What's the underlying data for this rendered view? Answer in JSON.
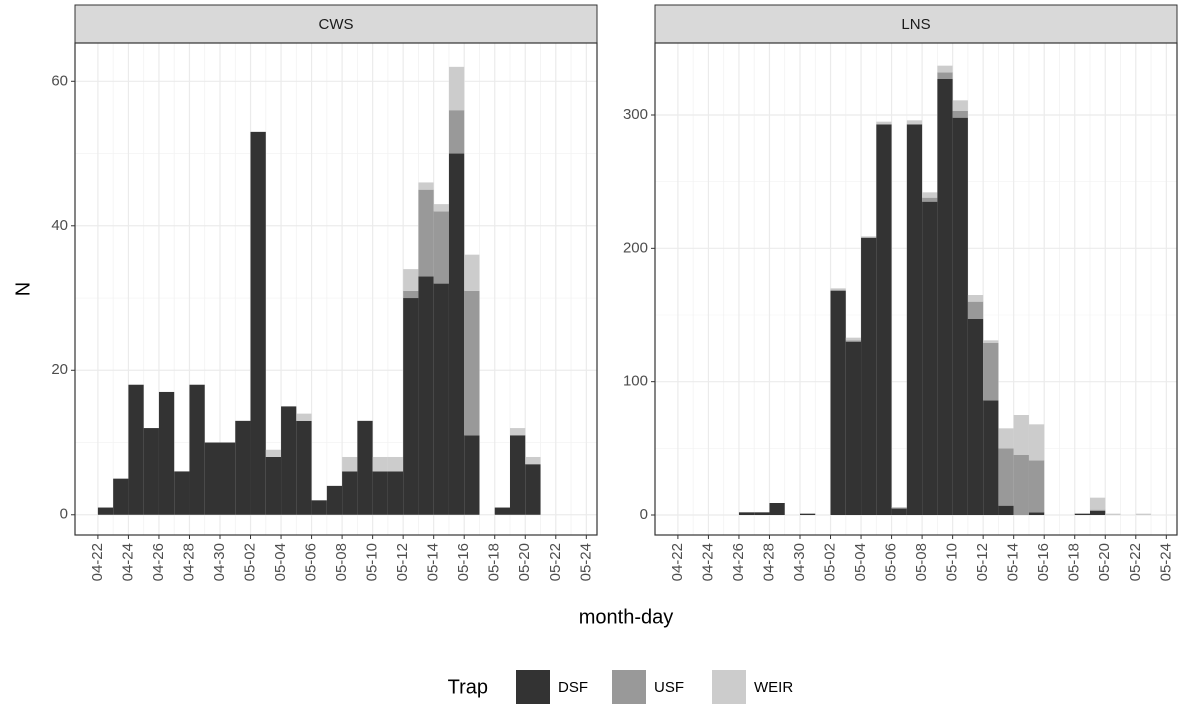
{
  "ylabel": "N",
  "xlabel": "month-day",
  "legend": {
    "title": "Trap",
    "position": "bottom",
    "series": [
      {
        "name": "DSF",
        "color": "#333333"
      },
      {
        "name": "USF",
        "color": "#999999"
      },
      {
        "name": "WEIR",
        "color": "#cccccc"
      }
    ]
  },
  "chart_data": [
    {
      "type": "bar",
      "title": "CWS",
      "stacked": true,
      "grid": true,
      "categories": [
        "04-22",
        null,
        "04-24",
        null,
        "04-26",
        null,
        "04-28",
        null,
        "04-30",
        null,
        "05-02",
        null,
        "05-04",
        null,
        "05-06",
        null,
        "05-08",
        null,
        "05-10",
        null,
        "05-12",
        null,
        "05-14",
        null,
        "05-16",
        null,
        "05-18",
        null,
        "05-20",
        null,
        "05-22",
        null,
        "05-24"
      ],
      "series": [
        {
          "values": [
            1,
            5,
            18,
            12,
            17,
            6,
            18,
            10,
            10,
            13,
            53,
            8,
            15,
            13,
            2,
            4,
            6,
            13,
            6,
            6,
            30,
            33,
            32,
            50,
            11,
            0,
            1,
            11,
            7,
            0,
            0,
            0,
            0
          ]
        },
        {
          "values": [
            0,
            0,
            0,
            0,
            0,
            0,
            0,
            0,
            0,
            0,
            0,
            0,
            0,
            0,
            0,
            0,
            0,
            0,
            0,
            0,
            1,
            12,
            10,
            6,
            20,
            0,
            0,
            0,
            0,
            0,
            0,
            0,
            0
          ]
        },
        {
          "values": [
            0,
            0,
            0,
            0,
            0,
            0,
            0,
            0,
            0,
            0,
            0,
            1,
            0,
            1,
            0,
            0,
            2,
            0,
            2,
            2,
            3,
            1,
            1,
            6,
            5,
            0,
            0,
            1,
            1,
            0,
            0,
            0,
            0
          ]
        }
      ],
      "xlim": [
        -1.5,
        32.7
      ],
      "ylim": [
        -2.8,
        65.3
      ],
      "yticks": [
        0,
        20,
        40,
        60
      ]
    },
    {
      "type": "bar",
      "title": "LNS",
      "stacked": true,
      "grid": true,
      "categories": [
        "04-22",
        null,
        "04-24",
        null,
        "04-26",
        null,
        "04-28",
        null,
        "04-30",
        null,
        "05-02",
        null,
        "05-04",
        null,
        "05-06",
        null,
        "05-08",
        null,
        "05-10",
        null,
        "05-12",
        null,
        "05-14",
        null,
        "05-16",
        null,
        "05-18",
        null,
        "05-20",
        null,
        "05-22",
        null,
        "05-24"
      ],
      "series": [
        {
          "values": [
            0,
            0,
            0,
            0,
            2,
            2,
            9,
            0,
            1,
            0,
            168,
            130,
            208,
            293,
            5,
            293,
            235,
            327,
            298,
            147,
            86,
            7,
            0,
            2,
            0,
            0,
            1,
            3,
            0,
            0,
            0,
            0,
            0
          ]
        },
        {
          "values": [
            0,
            0,
            0,
            0,
            0,
            0,
            0,
            0,
            0,
            0,
            1,
            1,
            0,
            0,
            0,
            0,
            3,
            5,
            5,
            13,
            43,
            43,
            45,
            39,
            0,
            0,
            0,
            1,
            0,
            0,
            0,
            0,
            0
          ]
        },
        {
          "values": [
            0,
            0,
            0,
            0,
            0,
            0,
            0,
            0,
            0,
            0,
            1,
            2,
            1,
            2,
            1,
            3,
            4,
            5,
            8,
            5,
            2,
            15,
            30,
            27,
            0,
            0,
            0,
            9,
            1,
            0,
            1,
            0,
            0
          ]
        }
      ],
      "xlim": [
        -1.5,
        32.7
      ],
      "ylim": [
        -15,
        354
      ],
      "yticks": [
        0,
        100,
        200,
        300
      ]
    }
  ]
}
